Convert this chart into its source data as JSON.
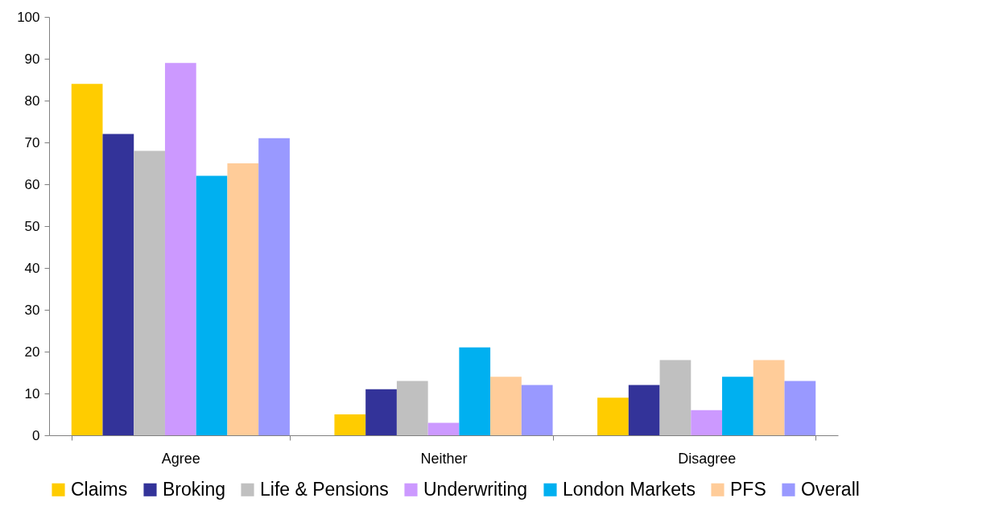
{
  "chart_data": {
    "type": "bar",
    "categories": [
      "Agree",
      "Neither",
      "Disagree"
    ],
    "series": [
      {
        "name": "Claims",
        "color": "#ffcc00",
        "values": [
          84,
          5,
          9
        ]
      },
      {
        "name": "Broking",
        "color": "#333399",
        "values": [
          72,
          11,
          12
        ]
      },
      {
        "name": "Life & Pensions",
        "color": "#c0c0c0",
        "values": [
          68,
          13,
          18
        ]
      },
      {
        "name": "Underwriting",
        "color": "#cc99ff",
        "values": [
          89,
          3,
          6
        ]
      },
      {
        "name": "London Markets",
        "color": "#00b0f0",
        "values": [
          62,
          21,
          14
        ]
      },
      {
        "name": "PFS",
        "color": "#ffcc99",
        "values": [
          65,
          14,
          18
        ]
      },
      {
        "name": "Overall",
        "color": "#9999ff",
        "values": [
          71,
          12,
          13
        ]
      }
    ],
    "ylim": [
      0,
      100
    ],
    "yticks": [
      0,
      10,
      20,
      30,
      40,
      50,
      60,
      70,
      80,
      90,
      100
    ],
    "grid": false,
    "legend": "bottom"
  }
}
